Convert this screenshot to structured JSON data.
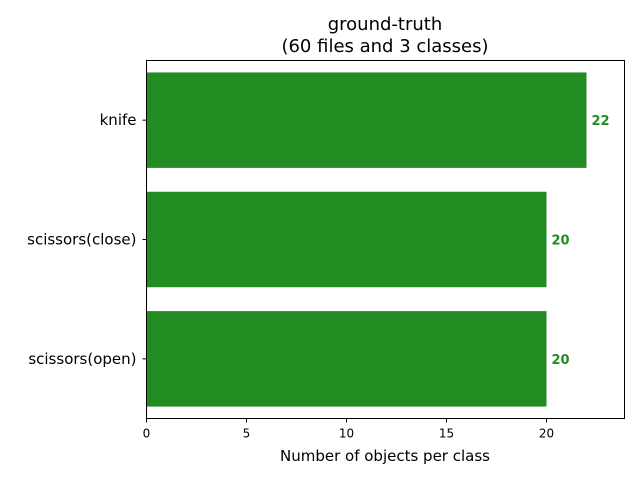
{
  "chart_data": {
    "type": "bar",
    "orientation": "horizontal",
    "title": "ground-truth",
    "subtitle": "(60 files and 3 classes)",
    "xlabel": "Number of objects per class",
    "ylabel": "",
    "categories": [
      "knife",
      "scissors(close)",
      "scissors(open)"
    ],
    "values": [
      22,
      20,
      20
    ],
    "xlim": [
      0,
      23.9
    ],
    "xticks": [
      0,
      5,
      10,
      15,
      20
    ],
    "bar_color": "#228b22",
    "value_label_color": "#228b22",
    "grid": false
  }
}
